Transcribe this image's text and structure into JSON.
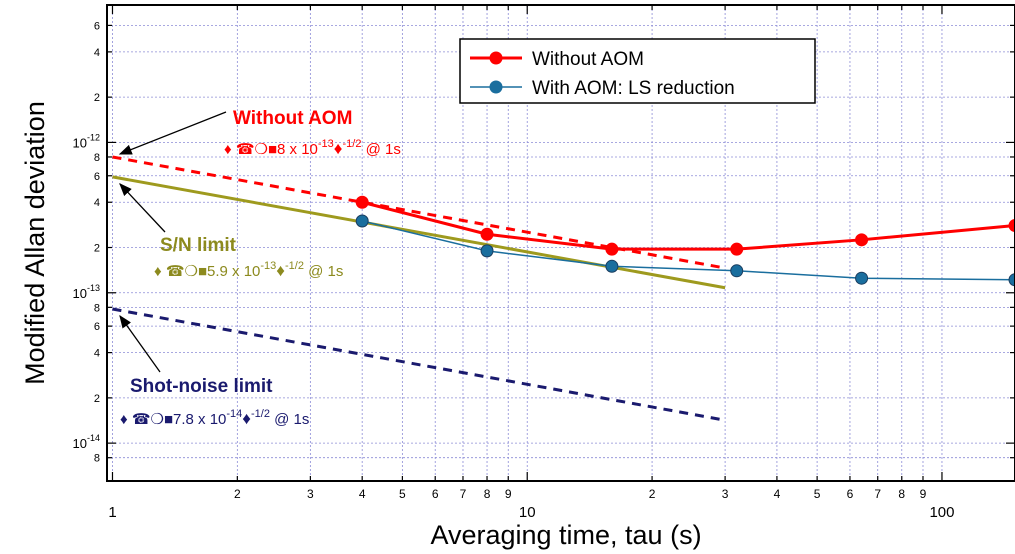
{
  "chart_data": {
    "type": "line",
    "xlabel": "Averaging time, tau (s)",
    "ylabel": "Modified Allan deviation",
    "x_scale": "log",
    "y_scale": "log",
    "xlim": [
      0.97,
      150
    ],
    "ylim": [
      5.6e-15,
      8.2e-12
    ],
    "grid": true,
    "legend_position": "top-right",
    "x_major_ticks": [
      {
        "value": 1,
        "label": "1"
      },
      {
        "value": 10,
        "label": "10"
      },
      {
        "value": 100,
        "label": "100"
      }
    ],
    "x_minor_ticks": [
      {
        "value": 2,
        "label": "2"
      },
      {
        "value": 3,
        "label": "3"
      },
      {
        "value": 4,
        "label": "4"
      },
      {
        "value": 5,
        "label": "5"
      },
      {
        "value": 6,
        "label": "6"
      },
      {
        "value": 7,
        "label": "7"
      },
      {
        "value": 8,
        "label": "8"
      },
      {
        "value": 9,
        "label": "9"
      },
      {
        "value": 20,
        "label": "2"
      },
      {
        "value": 30,
        "label": "3"
      },
      {
        "value": 40,
        "label": "4"
      },
      {
        "value": 50,
        "label": "5"
      },
      {
        "value": 60,
        "label": "6"
      },
      {
        "value": 70,
        "label": "7"
      },
      {
        "value": 80,
        "label": "8"
      },
      {
        "value": 90,
        "label": "9"
      }
    ],
    "y_major_ticks": [
      {
        "value": 1e-14,
        "base": "10",
        "exp": "-14"
      },
      {
        "value": 1e-13,
        "base": "10",
        "exp": "-13"
      },
      {
        "value": 1e-12,
        "base": "10",
        "exp": "-12"
      }
    ],
    "y_minor_ticks": [
      {
        "value": 8e-15,
        "label": "8"
      },
      {
        "value": 2e-14,
        "label": "2"
      },
      {
        "value": 4e-14,
        "label": "4"
      },
      {
        "value": 6e-14,
        "label": "6"
      },
      {
        "value": 8e-14,
        "label": "8"
      },
      {
        "value": 2e-13,
        "label": "2"
      },
      {
        "value": 4e-13,
        "label": "4"
      },
      {
        "value": 6e-13,
        "label": "6"
      },
      {
        "value": 8e-13,
        "label": "8"
      },
      {
        "value": 2e-12,
        "label": "2"
      },
      {
        "value": 4e-12,
        "label": "4"
      },
      {
        "value": 6e-12,
        "label": "6"
      }
    ],
    "series": [
      {
        "name": "Without AOM",
        "color": "#ff0000",
        "marker": "circle",
        "x": [
          4,
          8,
          16,
          32,
          64,
          150
        ],
        "y": [
          4e-13,
          2.45e-13,
          1.95e-13,
          1.95e-13,
          2.25e-13,
          2.8e-13
        ]
      },
      {
        "name": "With AOM: LS reduction",
        "color": "#1a6e9e",
        "marker": "circle",
        "x": [
          4,
          8,
          16,
          32,
          64,
          150
        ],
        "y": [
          3e-13,
          1.9e-13,
          1.5e-13,
          1.4e-13,
          1.25e-13,
          1.22e-13
        ]
      }
    ],
    "reference_lines": [
      {
        "id": "without-aom-fit",
        "color": "#ff0000",
        "style": "dashed",
        "x": [
          1,
          30
        ],
        "y": [
          8e-13,
          1.46e-13
        ]
      },
      {
        "id": "sn-limit",
        "color": "#9e9a1e",
        "style": "solid",
        "x": [
          1,
          30
        ],
        "y": [
          5.9e-13,
          1.08e-13
        ]
      },
      {
        "id": "shot-noise-limit",
        "color": "#1a1a6e",
        "style": "dashed",
        "x": [
          1,
          30
        ],
        "y": [
          7.8e-14,
          1.42e-14
        ]
      }
    ],
    "annotations": [
      {
        "id": "ann-without-aom",
        "color": "#ff0000",
        "title": "Without AOM",
        "prefix": "♦ ☎❍■",
        "text": "8 x 10",
        "exp": "-13",
        "mid": "♦",
        "tau_exp": "-1/2",
        "tail": "@ 1s"
      },
      {
        "id": "ann-sn-limit",
        "color": "#8c8a1e",
        "title": "S/N limit",
        "prefix": "♦ ☎❍■",
        "text": "5.9 x 10",
        "exp": "-13",
        "mid": "♦",
        "tau_exp": "-1/2",
        "tail": "@ 1s"
      },
      {
        "id": "ann-shot-noise",
        "color": "#1a1a6e",
        "title": "Shot-noise limit",
        "prefix": "♦ ☎❍■",
        "text": "7.8 x 10",
        "exp": "-14",
        "mid": "♦",
        "tau_exp": "-1/2",
        "tail": "@ 1s"
      }
    ]
  }
}
